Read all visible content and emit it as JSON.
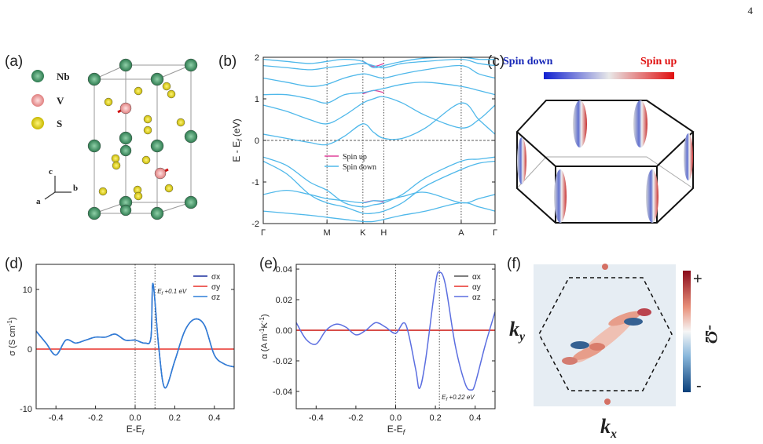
{
  "page_number": "4",
  "panel_labels": [
    "(a)",
    "(b)",
    "(c)",
    "(d)",
    "(e)",
    "(f)"
  ],
  "structure": {
    "legend": [
      {
        "name": "Nb",
        "color": "#3d8a5f"
      },
      {
        "name": "V",
        "color": "#f2a3a3"
      },
      {
        "name": "S",
        "color": "#e8dc00"
      }
    ],
    "axes": [
      "c",
      "a",
      "b"
    ]
  },
  "fermi_surface": {
    "colorbar_left": "Spin down",
    "colorbar_right": "Spin up"
  },
  "berry": {
    "x_label": [
      "k",
      "x"
    ],
    "y_label": [
      "k",
      "y"
    ],
    "colorbar_label": "-Ω",
    "colorbar_top": "+",
    "colorbar_bottom": "-"
  },
  "chart_data": [
    {
      "type": "line",
      "x": [
        0,
        0.1,
        0.2,
        0.275,
        0.35,
        0.43,
        0.475,
        0.52,
        0.6,
        0.7,
        0.854,
        0.93,
        1
      ],
      "xlim": [
        0,
        1
      ],
      "xticks": [
        {
          "value": 0,
          "label": "Γ"
        },
        {
          "value": 0.275,
          "label": "M"
        },
        {
          "value": 0.43,
          "label": "K"
        },
        {
          "value": 0.52,
          "label": "H"
        },
        {
          "value": 0.854,
          "label": "A"
        },
        {
          "value": 1,
          "label": "Γ"
        }
      ],
      "ylim": [
        -2,
        2
      ],
      "yticks": [
        -2,
        -1,
        0,
        1,
        2
      ],
      "ylabel": [
        "E - E",
        "f",
        " (eV)"
      ],
      "hline": 0,
      "xgrid": true,
      "series": [
        {
          "name": "Spin up",
          "color": "#e0409a",
          "bands": [
            [
              null,
              null,
              null,
              null,
              null,
              1.12,
              1.2,
              1.15,
              null,
              null,
              null,
              null,
              null
            ],
            [
              null,
              null,
              null,
              null,
              null,
              -1.5,
              -1.45,
              -1.48,
              null,
              null,
              null,
              null,
              null
            ],
            [
              null,
              null,
              null,
              null,
              null,
              1.9,
              1.78,
              1.85,
              null,
              null,
              null,
              null,
              null
            ]
          ]
        },
        {
          "name": "Spin down",
          "color": "#4fb8ea",
          "bands": [
            [
              0.15,
              0.05,
              -0.05,
              -0.1,
              0.1,
              0.4,
              0.2,
              0.05,
              0.05,
              0.3,
              0.9,
              0.5,
              0.15
            ],
            [
              -0.4,
              -0.6,
              -1.0,
              -1.2,
              -1.5,
              -1.6,
              -1.55,
              -1.5,
              -1.3,
              -0.9,
              -0.5,
              -0.45,
              -0.4
            ],
            [
              -0.5,
              -0.8,
              -1.3,
              -1.5,
              -1.6,
              -1.75,
              -1.75,
              -1.7,
              -1.5,
              -1.1,
              -0.7,
              -0.55,
              -0.5
            ],
            [
              -1.7,
              -1.75,
              -1.8,
              -1.85,
              -1.9,
              -1.95,
              -1.95,
              -1.9,
              -1.8,
              -1.7,
              -1.5,
              -1.6,
              -1.7
            ],
            [
              0.85,
              0.7,
              0.5,
              0.4,
              0.6,
              0.9,
              1.0,
              1.05,
              0.9,
              0.6,
              0.3,
              0.5,
              0.85
            ],
            [
              1.1,
              1.1,
              1.0,
              0.9,
              1.1,
              1.15,
              1.2,
              1.25,
              1.35,
              1.4,
              1.3,
              1.2,
              1.1
            ],
            [
              1.5,
              1.4,
              1.3,
              1.35,
              1.5,
              1.6,
              1.55,
              1.5,
              1.6,
              1.7,
              1.8,
              1.6,
              1.5
            ],
            [
              1.8,
              1.75,
              1.7,
              1.75,
              1.8,
              1.85,
              1.8,
              1.75,
              1.85,
              1.9,
              1.95,
              1.85,
              1.8
            ],
            [
              1.95,
              1.9,
              1.85,
              1.9,
              1.95,
              1.9,
              1.75,
              1.8,
              1.9,
              1.98,
              2.0,
              1.95,
              1.95
            ],
            [
              -1.3,
              -1.2,
              -1.3,
              -1.4,
              -1.45,
              -1.5,
              -1.45,
              -1.45,
              -1.35,
              -1.25,
              -1.5,
              -1.4,
              -1.3
            ]
          ]
        }
      ]
    },
    {
      "type": "line",
      "x": [
        -0.5,
        -0.45,
        -0.4,
        -0.35,
        -0.3,
        -0.25,
        -0.2,
        -0.15,
        -0.1,
        -0.05,
        0,
        0.05,
        0.08,
        0.09,
        0.12,
        0.15,
        0.2,
        0.25,
        0.3,
        0.35,
        0.4,
        0.45,
        0.5
      ],
      "xlim": [
        -0.5,
        0.5
      ],
      "xticks": [
        -0.4,
        -0.2,
        {
          "value": 0,
          "label": "0.0"
        },
        0.2,
        0.4
      ],
      "ylim": [
        -10,
        14.2
      ],
      "yticks": [
        -10,
        0,
        10
      ],
      "xlabel": [
        "E-E",
        "f"
      ],
      "ylabel": [
        "σ (S cm",
        "-1",
        ")"
      ],
      "vlines": [
        0,
        0.1
      ],
      "annotation": [
        "E",
        "f",
        " +0.1 eV"
      ],
      "series": [
        {
          "name": "σx",
          "color": "#1a2f9e",
          "values": [
            3,
            1,
            -1,
            1.5,
            1,
            1.5,
            2,
            2,
            2.5,
            1.5,
            1.5,
            1,
            2,
            11,
            0,
            -6.5,
            -2,
            3,
            5,
            4,
            -1,
            -2.5,
            -3
          ]
        },
        {
          "name": "σy",
          "color": "#e8302a",
          "values": [
            0,
            0,
            0,
            0,
            0,
            0,
            0,
            0,
            0,
            0,
            0,
            0,
            0,
            0,
            0,
            0,
            0,
            0,
            0,
            0,
            0,
            0,
            0
          ]
        },
        {
          "name": "σz",
          "color": "#2f7ed8",
          "values": [
            3,
            1,
            -1,
            1.5,
            1,
            1.5,
            2,
            2,
            2.5,
            1.5,
            1.5,
            1,
            2,
            11,
            0,
            -6.5,
            -2,
            3,
            5,
            4,
            -1,
            -2.5,
            -3
          ]
        }
      ]
    },
    {
      "type": "line",
      "x": [
        -0.5,
        -0.45,
        -0.4,
        -0.35,
        -0.3,
        -0.25,
        -0.2,
        -0.15,
        -0.1,
        -0.05,
        0,
        0.05,
        0.1,
        0.12,
        0.15,
        0.2,
        0.22,
        0.25,
        0.3,
        0.35,
        0.38,
        0.4,
        0.45,
        0.5
      ],
      "xlim": [
        -0.5,
        0.5
      ],
      "xticks": [
        -0.4,
        -0.2,
        {
          "value": 0,
          "label": "0.0"
        },
        0.2,
        0.4
      ],
      "ylim": [
        -0.0513,
        0.0431
      ],
      "yticks": [
        -0.04,
        -0.02,
        {
          "value": 0,
          "label": "0.00"
        },
        0.02,
        0.04
      ],
      "xlabel": [
        "E-E",
        "f"
      ],
      "ylabel": [
        "α (A m",
        "-1",
        "K",
        "-1",
        ")"
      ],
      "vlines": [
        0,
        0.22
      ],
      "annotation": [
        "E",
        "f",
        " +0.22 eV"
      ],
      "series": [
        {
          "name": "αx",
          "color": "#555555",
          "values": [
            0,
            0,
            0,
            0,
            0,
            0,
            0,
            0,
            0,
            0,
            0,
            0,
            0,
            0,
            0,
            0,
            0,
            0,
            0,
            0,
            0,
            0,
            0,
            0
          ]
        },
        {
          "name": "αy",
          "color": "#e8302a",
          "values": [
            0,
            0,
            0,
            0,
            0,
            0,
            0,
            0,
            0,
            0,
            0,
            0,
            0,
            0,
            0,
            0,
            0,
            0,
            0,
            0,
            0,
            0,
            0,
            0
          ]
        },
        {
          "name": "αz",
          "color": "#5b6ee0",
          "values": [
            0.005,
            -0.006,
            -0.009,
            0,
            0.004,
            0.002,
            -0.003,
            0,
            0.005,
            0.002,
            -0.002,
            0.004,
            -0.025,
            -0.038,
            -0.02,
            0.03,
            0.038,
            0.03,
            -0.01,
            -0.035,
            -0.039,
            -0.035,
            -0.01,
            0.012
          ]
        }
      ]
    }
  ]
}
